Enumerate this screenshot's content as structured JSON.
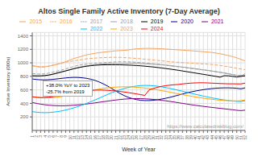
{
  "chart_data": {
    "type": "line",
    "title": "Altos Single Family Active Inventory (7-Day Average)",
    "x_label": "Week of Year",
    "y_label": "Active Inventory (000s)",
    "annotations": [
      "+38.0% YoY to 2023\n-25.7% from 2019",
      "https://www.calculatedriskblog.com/"
    ],
    "x": [
      1,
      2,
      3,
      4,
      5,
      6,
      7,
      8,
      9,
      10,
      11,
      12,
      13,
      14,
      15,
      16,
      17,
      18,
      19,
      20,
      21,
      22,
      23,
      24,
      25,
      26,
      27,
      28,
      29,
      30,
      31,
      32,
      33,
      34,
      35,
      36,
      37,
      38,
      39,
      40,
      41,
      42,
      43,
      44,
      45,
      46,
      47,
      48,
      49,
      50,
      51,
      52
    ],
    "xlim": [
      1,
      52
    ],
    "xticks": [
      1,
      2,
      3,
      4,
      5,
      6,
      7,
      8,
      9,
      10,
      11,
      12,
      13,
      14,
      15,
      16,
      17,
      18,
      19,
      20,
      21,
      22,
      23,
      24,
      25,
      26,
      27,
      28,
      29,
      30,
      31,
      32,
      33,
      34,
      35,
      36,
      37,
      38,
      39,
      40,
      41,
      42,
      43,
      44,
      45,
      46,
      47,
      48,
      49,
      50,
      51,
      52
    ],
    "ylim": [
      0,
      1450
    ],
    "yticks": [
      200,
      400,
      600,
      800,
      1000,
      1200,
      1400
    ],
    "grid": true,
    "legend": "top",
    "series": [
      {
        "name": "2015",
        "color": "#F4A460",
        "line_style": "solid",
        "values": [
          960,
          948,
          940,
          942,
          952,
          963,
          978,
          995,
          1018,
          1042,
          1065,
          1082,
          1100,
          1118,
          1130,
          1140,
          1150,
          1158,
          1165,
          1172,
          1178,
          1182,
          1185,
          1190,
          1200,
          1208,
          1210,
          1214,
          1214,
          1213,
          1210,
          1208,
          1204,
          1200,
          1196,
          1192,
          1188,
          1184,
          1180,
          1175,
          1170,
          1165,
          1160,
          1154,
          1145,
          1135,
          1122,
          1108,
          1093,
          1075,
          1052,
          1028
        ]
      },
      {
        "name": "2016",
        "color": "#F4A460",
        "line_style": "dashed",
        "values": [
          958,
          945,
          938,
          942,
          952,
          968,
          982,
          998,
          1010,
          1020,
          1030,
          1040,
          1050,
          1060,
          1065,
          1070,
          1074,
          1077,
          1080,
          1082,
          1082,
          1081,
          1078,
          1074,
          1070,
          1065,
          1060,
          1054,
          1048,
          1042,
          1036,
          1030,
          1024,
          1018,
          1012,
          1008,
          1004,
          1000,
          996,
          992,
          988,
          984,
          980,
          975,
          970,
          962,
          952,
          942,
          932,
          920,
          910,
          900
        ]
      },
      {
        "name": "2017",
        "color": "#A0A0A0",
        "line_style": "dashed",
        "values": [
          840,
          836,
          834,
          838,
          848,
          862,
          878,
          894,
          910,
          928,
          948,
          962,
          973,
          982,
          988,
          994,
          998,
          1002,
          1006,
          1010,
          1014,
          1016,
          1016,
          1014,
          1012,
          1008,
          1004,
          998,
          992,
          986,
          980,
          973,
          966,
          958,
          950,
          942,
          934,
          926,
          918,
          910,
          902,
          894,
          886,
          878,
          869,
          860,
          850,
          840,
          828,
          815,
          803,
          840
        ]
      },
      {
        "name": "2018",
        "color": "#A0A0A0",
        "line_style": "solid",
        "values": [
          800,
          800,
          802,
          808,
          818,
          830,
          846,
          862,
          878,
          896,
          914,
          930,
          944,
          956,
          964,
          972,
          978,
          982,
          985,
          987,
          989,
          991,
          992,
          992,
          992,
          991,
          989,
          987,
          984,
          980,
          976,
          971,
          965,
          959,
          952,
          945,
          938,
          930,
          922,
          914,
          906,
          897,
          889,
          880,
          870,
          860,
          850,
          838,
          826,
          812,
          816,
          808
        ]
      },
      {
        "name": "2019",
        "color": "#000000",
        "line_style": "solid",
        "values": [
          810,
          808,
          808,
          812,
          820,
          834,
          850,
          866,
          882,
          898,
          914,
          928,
          940,
          950,
          958,
          964,
          968,
          971,
          972,
          972,
          972,
          971,
          969,
          967,
          964,
          960,
          956,
          951,
          945,
          939,
          932,
          924,
          916,
          908,
          899,
          890,
          880,
          870,
          860,
          850,
          840,
          830,
          820,
          810,
          800,
          788,
          810,
          808,
          800,
          790,
          800,
          808
        ]
      },
      {
        "name": "2020",
        "color": "#00008B",
        "line_style": "solid",
        "values": [
          762,
          754,
          749,
          748,
          751,
          756,
          763,
          770,
          777,
          782,
          785,
          784,
          779,
          771,
          758,
          741,
          718,
          690,
          658,
          622,
          584,
          548,
          516,
          490,
          470,
          456,
          446,
          442,
          442,
          446,
          454,
          464,
          476,
          490,
          506,
          522,
          539,
          555,
          569,
          582,
          593,
          603,
          612,
          619,
          625,
          628,
          630,
          630,
          628,
          624,
          616,
          630
        ]
      },
      {
        "name": "2021",
        "color": "#800080",
        "line_style": "solid",
        "values": [
          414,
          400,
          389,
          380,
          374,
          369,
          366,
          365,
          366,
          369,
          373,
          378,
          384,
          391,
          399,
          407,
          416,
          425,
          433,
          442,
          450,
          457,
          463,
          467,
          470,
          471,
          470,
          468,
          464,
          459,
          453,
          446,
          438,
          429,
          420,
          410,
          400,
          391,
          381,
          372,
          364,
          356,
          348,
          341,
          334,
          327,
          320,
          313,
          306,
          298,
          293,
          300
        ]
      },
      {
        "name": "2022",
        "color": "#00BFFF",
        "line_style": "solid",
        "values": [
          278,
          270,
          265,
          263,
          265,
          270,
          278,
          288,
          302,
          317,
          335,
          354,
          376,
          399,
          424,
          450,
          476,
          504,
          530,
          556,
          580,
          601,
          620,
          636,
          648,
          657,
          663,
          666,
          665,
          661,
          654,
          645,
          634,
          622,
          608,
          594,
          580,
          565,
          550,
          536,
          522,
          508,
          495,
          483,
          471,
          460,
          451,
          442,
          435,
          430,
          427,
          440
        ]
      },
      {
        "name": "2023",
        "color": "#FFA500",
        "line_style": "solid",
        "values": [
          498,
          490,
          485,
          482,
          483,
          487,
          493,
          501,
          510,
          522,
          535,
          548,
          561,
          574,
          588,
          600,
          612,
          622,
          630,
          636,
          641,
          644,
          646,
          645,
          643,
          639,
          634,
          627,
          619,
          610,
          600,
          589,
          578,
          566,
          554,
          542,
          530,
          518,
          507,
          496,
          487,
          477,
          468,
          461,
          454,
          448,
          443,
          440,
          438,
          437,
          440,
          452
        ]
      },
      {
        "name": "2024",
        "color": "#FF0000",
        "line_style": "solid",
        "values": [
          498,
          490,
          486,
          487,
          492,
          500,
          510,
          521,
          533,
          546,
          558,
          569,
          579,
          586,
          592,
          596,
          597,
          596,
          593,
          589,
          584,
          577,
          569,
          560,
          550,
          540,
          529,
          518,
          600,
          620,
          638,
          652,
          662,
          670,
          676,
          680,
          688,
          695,
          700,
          703,
          705,
          705,
          703,
          700,
          697,
          694,
          692,
          690,
          690,
          689,
          688,
          700
        ]
      }
    ]
  }
}
